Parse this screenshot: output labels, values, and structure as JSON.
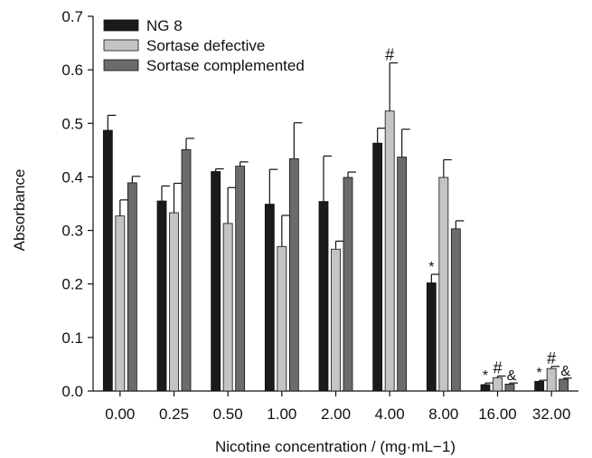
{
  "chart_data": {
    "type": "bar",
    "xlabel": "Nicotine concentration / (mg·mL−1)",
    "ylabel": "Absorbance",
    "ylim": [
      0,
      0.7
    ],
    "yticks": [
      "0.0",
      "0.1",
      "0.2",
      "0.3",
      "0.4",
      "0.5",
      "0.6",
      "0.7"
    ],
    "categories": [
      "0.00",
      "0.25",
      "0.50",
      "1.00",
      "2.00",
      "4.00",
      "8.00",
      "16.00",
      "32.00"
    ],
    "legend_position": "top-left",
    "grid": false,
    "series": [
      {
        "name": "NG 8",
        "color": "#1a1a1a",
        "values": [
          0.487,
          0.355,
          0.41,
          0.349,
          0.354,
          0.463,
          0.202,
          0.012,
          0.018
        ],
        "errors": [
          0.028,
          0.028,
          0.005,
          0.065,
          0.085,
          0.028,
          0.016,
          0.003,
          0.002
        ]
      },
      {
        "name": "Sortase defective",
        "color": "#c4c4c4",
        "values": [
          0.327,
          0.333,
          0.313,
          0.27,
          0.265,
          0.523,
          0.399,
          0.025,
          0.042
        ],
        "errors": [
          0.03,
          0.055,
          0.067,
          0.058,
          0.015,
          0.09,
          0.033,
          0.003,
          0.004
        ]
      },
      {
        "name": "Sortase complemented",
        "color": "#6b6b6b",
        "values": [
          0.389,
          0.451,
          0.42,
          0.434,
          0.399,
          0.437,
          0.303,
          0.013,
          0.022
        ],
        "errors": [
          0.012,
          0.021,
          0.008,
          0.067,
          0.01,
          0.052,
          0.015,
          0.002,
          0.002
        ]
      }
    ],
    "annotations": [
      {
        "category": "4.00",
        "series": 1,
        "text": "#"
      },
      {
        "category": "8.00",
        "series": 0,
        "text": "*"
      },
      {
        "category": "16.00",
        "series": 0,
        "text": "*"
      },
      {
        "category": "16.00",
        "series": 1,
        "text": "#"
      },
      {
        "category": "16.00",
        "series": 2,
        "text": "&"
      },
      {
        "category": "32.00",
        "series": 0,
        "text": "*"
      },
      {
        "category": "32.00",
        "series": 1,
        "text": "#"
      },
      {
        "category": "32.00",
        "series": 2,
        "text": "&"
      }
    ]
  }
}
